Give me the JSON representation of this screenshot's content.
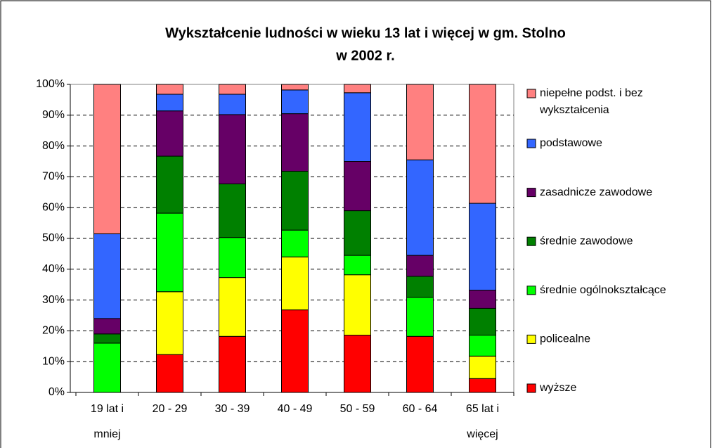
{
  "chart_data": {
    "type": "stacked_bar",
    "title": [
      "Wykształcenie ludności w wieku 13 lat i więcej w gm. Stolno",
      "w 2002 r."
    ],
    "categories": [
      "19 lat i mniej",
      "20 - 29",
      "30 - 39",
      "40 - 49",
      "50 - 59",
      "60 - 64",
      "65 lat i więcej"
    ],
    "series": [
      {
        "name": "wyższe",
        "color": "#ff0000",
        "values": [
          0,
          12.3,
          18.2,
          26.8,
          18.6,
          18.2,
          4.5
        ]
      },
      {
        "name": "policealne",
        "color": "#ffff00",
        "values": [
          0,
          20.4,
          19.1,
          17.2,
          19.6,
          0,
          7.3
        ]
      },
      {
        "name": "średnie ogólnokształcące",
        "color": "#00ff00",
        "values": [
          16,
          25.5,
          13,
          8.7,
          6.3,
          12.7,
          6.8
        ]
      },
      {
        "name": "średnie zawodowe",
        "color": "#008000",
        "values": [
          3,
          18.5,
          17.4,
          19.1,
          14.5,
          6.8,
          8.7
        ]
      },
      {
        "name": "zasadnicze zawodowe",
        "color": "#660066",
        "values": [
          5,
          14.7,
          22.5,
          18.7,
          16,
          6.8,
          5.9
        ]
      },
      {
        "name": "podstawowe",
        "color": "#3366ff",
        "values": [
          27.5,
          5.4,
          6.6,
          7.7,
          22.3,
          31,
          28.2
        ]
      },
      {
        "name": "niepełne podst. i bez wykształcenia",
        "color": "#ff8080",
        "values": [
          48.5,
          3.2,
          3.2,
          1.8,
          2.7,
          24.5,
          38.6
        ]
      }
    ],
    "ylim": [
      0,
      100
    ],
    "yticks": [
      {
        "value": 0,
        "label": "0%"
      },
      {
        "value": 10,
        "label": "10%"
      },
      {
        "value": 20,
        "label": "20%"
      },
      {
        "value": 30,
        "label": "30%"
      },
      {
        "value": 40,
        "label": "40%"
      },
      {
        "value": 50,
        "label": "50%"
      },
      {
        "value": 60,
        "label": "60%"
      },
      {
        "value": 70,
        "label": "70%"
      },
      {
        "value": 80,
        "label": "80%"
      },
      {
        "value": 90,
        "label": "90%"
      },
      {
        "value": 100,
        "label": "100%"
      }
    ],
    "grid": true,
    "legend": "right"
  }
}
